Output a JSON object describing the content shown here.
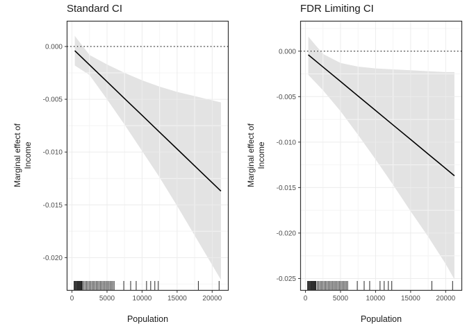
{
  "styles": {
    "background": "#FFFFFF",
    "panel_border": "#333333",
    "grid_major": "#ECECEC",
    "grid_minor": "#F4F4F4",
    "ribbon_fill": "#E3E3E3",
    "line_color": "#000000",
    "reference_line_color": "#1A1A1A",
    "rug_color": "#262626",
    "tick_color": "#333333",
    "tick_label_color": "#4D4D4D",
    "title_color": "#1A1A1A"
  },
  "chart_data": [
    {
      "type": "line",
      "title": "Standard CI",
      "xlabel": "Population",
      "ylabel": "Marginal effect of Income",
      "ylabel_lines": [
        "Marginal effect of",
        "Income"
      ],
      "legend": "none",
      "grid": "major+minor",
      "xlim": [
        -700,
        22300
      ],
      "ylim": [
        -0.0231,
        0.0024
      ],
      "x_ticks": [
        0,
        5000,
        10000,
        15000,
        20000
      ],
      "x_tick_labels": [
        "0",
        "5000",
        "10000",
        "15000",
        "20000"
      ],
      "x_minor": [
        2500,
        7500,
        12500,
        17500
      ],
      "y_ticks": [
        0,
        -0.005,
        -0.01,
        -0.015,
        -0.02
      ],
      "y_tick_labels": [
        "0.000",
        "-0.005",
        "-0.010",
        "-0.015",
        "-0.020"
      ],
      "y_minor": [
        -0.0025,
        -0.0075,
        -0.0125,
        -0.0175,
        -0.0225
      ],
      "reference_line_y": 0,
      "series": {
        "x": [
          400,
          2500,
          5000,
          7500,
          10000,
          12500,
          15000,
          17500,
          20000,
          21250
        ],
        "estimate": [
          -0.0004,
          -0.00174,
          -0.00333,
          -0.00493,
          -0.00652,
          -0.00812,
          -0.00971,
          -0.01131,
          -0.0129,
          -0.0137
        ],
        "ci_upper": [
          0.001,
          -0.0008,
          -0.0017,
          -0.0025,
          -0.0032,
          -0.0038,
          -0.0043,
          -0.0047,
          -0.0051,
          -0.0053
        ],
        "ci_lower": [
          -0.0018,
          -0.0027,
          -0.005,
          -0.0074,
          -0.0099,
          -0.0124,
          -0.0151,
          -0.0179,
          -0.0207,
          -0.0221
        ]
      },
      "rug_x": [
        300,
        400,
        500,
        600,
        700,
        790,
        890,
        990,
        1080,
        1180,
        1280,
        1380,
        1480,
        1670,
        1870,
        2070,
        2260,
        2460,
        2660,
        2860,
        3050,
        3250,
        3450,
        3640,
        3840,
        4040,
        4230,
        4430,
        4630,
        4830,
        5020,
        5220,
        5420,
        5610,
        5810,
        6010,
        7390,
        8370,
        9160,
        10640,
        11230,
        11820,
        12310,
        18030,
        20990
      ]
    },
    {
      "type": "line",
      "title": "FDR Limiting CI",
      "xlabel": "Population",
      "ylabel": "Marginal effect of Income",
      "ylabel_lines": [
        "Marginal effect of",
        "Income"
      ],
      "legend": "none",
      "grid": "major+minor",
      "xlim": [
        -700,
        22300
      ],
      "ylim": [
        -0.0263,
        0.0033
      ],
      "x_ticks": [
        0,
        5000,
        10000,
        15000,
        20000
      ],
      "x_tick_labels": [
        "0",
        "5000",
        "10000",
        "15000",
        "20000"
      ],
      "x_minor": [
        2500,
        7500,
        12500,
        17500
      ],
      "y_ticks": [
        0,
        -0.005,
        -0.01,
        -0.015,
        -0.02,
        -0.025
      ],
      "y_tick_labels": [
        "0.000",
        "-0.005",
        "-0.010",
        "-0.015",
        "-0.020",
        "-0.025"
      ],
      "y_minor": [
        0.0025,
        -0.0025,
        -0.0075,
        -0.0125,
        -0.0175,
        -0.0225
      ],
      "reference_line_y": 0,
      "series": {
        "x": [
          400,
          2500,
          5000,
          7500,
          10000,
          12500,
          15000,
          17500,
          20000,
          21250
        ],
        "estimate": [
          -0.0004,
          -0.00174,
          -0.00333,
          -0.00493,
          -0.00652,
          -0.00812,
          -0.00971,
          -0.01131,
          -0.0129,
          -0.0137
        ],
        "ci_upper": [
          0.0016,
          -0.0003,
          -0.0013,
          -0.0017,
          -0.0019,
          -0.002,
          -0.0021,
          -0.0022,
          -0.0023,
          -0.0023
        ],
        "ci_lower": [
          -0.0026,
          -0.0043,
          -0.0066,
          -0.0092,
          -0.0119,
          -0.0147,
          -0.0176,
          -0.0204,
          -0.0234,
          -0.0251
        ]
      },
      "rug_x": [
        300,
        400,
        500,
        600,
        700,
        790,
        890,
        990,
        1080,
        1180,
        1280,
        1380,
        1480,
        1670,
        1870,
        2070,
        2260,
        2460,
        2660,
        2860,
        3050,
        3250,
        3450,
        3640,
        3840,
        4040,
        4230,
        4430,
        4630,
        4830,
        5020,
        5220,
        5420,
        5610,
        5810,
        6010,
        7390,
        8370,
        9160,
        10640,
        11230,
        11820,
        12310,
        18030,
        20990
      ]
    }
  ]
}
